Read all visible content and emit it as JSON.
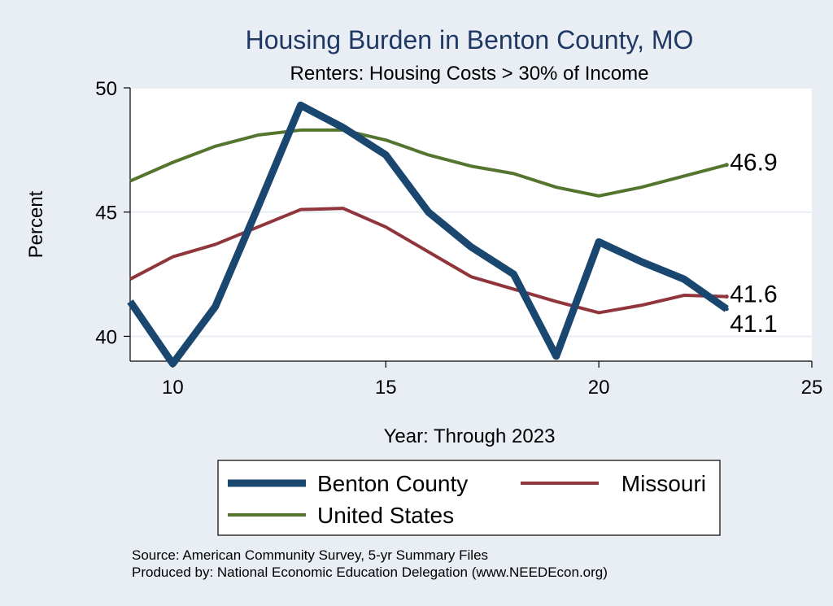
{
  "chart_data": {
    "type": "line",
    "title": "Housing Burden in Benton County, MO",
    "subtitle": "Renters: Housing Costs > 30% of Income",
    "xlabel": "Year: Through 2023",
    "ylabel": "Percent",
    "xlim": [
      9,
      25
    ],
    "ylim": [
      39,
      50
    ],
    "xticks": [
      10,
      15,
      20,
      25
    ],
    "yticks": [
      40,
      45,
      50
    ],
    "grid": true,
    "x": [
      9,
      10,
      11,
      12,
      13,
      14,
      15,
      16,
      17,
      18,
      19,
      20,
      21,
      22,
      23
    ],
    "series": [
      {
        "name": "Benton County",
        "color": "#1a476f",
        "values": [
          41.4,
          38.9,
          41.2,
          45.2,
          49.3,
          48.4,
          47.3,
          45.0,
          43.6,
          42.5,
          39.2,
          43.8,
          43.0,
          42.3,
          41.1
        ],
        "end_label": "41.1"
      },
      {
        "name": "Missouri",
        "color": "#90353b",
        "values": [
          42.3,
          43.2,
          43.7,
          44.4,
          45.1,
          45.15,
          44.4,
          43.4,
          42.4,
          41.9,
          41.4,
          40.95,
          41.25,
          41.65,
          41.6
        ],
        "end_label": "41.6"
      },
      {
        "name": "United States",
        "color": "#55752f",
        "values": [
          46.25,
          47.0,
          47.65,
          48.1,
          48.3,
          48.3,
          47.9,
          47.3,
          46.85,
          46.55,
          46.0,
          45.65,
          46.0,
          46.45,
          46.9
        ],
        "end_label": "46.9"
      }
    ],
    "legend_position": "bottom",
    "notes": [
      "Source: American Community Survey, 5-yr Summary Files",
      "Produced by: National Economic Education Delegation (www.NEEDEcon.org)"
    ]
  }
}
